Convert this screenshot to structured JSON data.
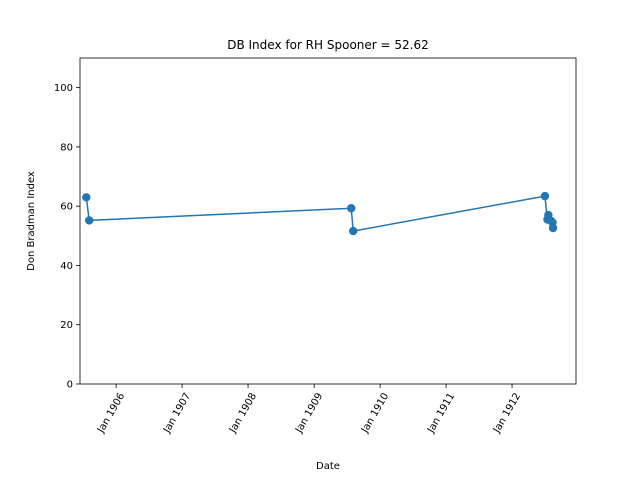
{
  "chart_data": {
    "type": "line",
    "title": "DB Index for RH Spooner = 52.62",
    "xlabel": "Date",
    "ylabel": "Don Bradman Index",
    "ylim": [
      0,
      110
    ],
    "xlim": [
      "1905-06-15",
      "1912-12-20"
    ],
    "x_ticks": [
      {
        "date": "1906-01-01",
        "label": "Jan 1906"
      },
      {
        "date": "1907-01-01",
        "label": "Jan 1907"
      },
      {
        "date": "1908-01-01",
        "label": "Jan 1908"
      },
      {
        "date": "1909-01-01",
        "label": "Jan 1909"
      },
      {
        "date": "1910-01-01",
        "label": "Jan 1910"
      },
      {
        "date": "1911-01-01",
        "label": "Jan 1911"
      },
      {
        "date": "1912-01-01",
        "label": "Jan 1912"
      }
    ],
    "y_ticks": [
      0,
      20,
      40,
      60,
      80,
      100
    ],
    "grid": false,
    "color": "#1f77b4",
    "series": [
      {
        "x": [
          "1905-07-20",
          "1905-08-05",
          "1909-07-25",
          "1909-08-05",
          "1912-07-01",
          "1912-07-15",
          "1912-07-20",
          "1912-08-05",
          "1912-08-12",
          "1912-08-15"
        ],
        "y": [
          63.0,
          55.2,
          59.3,
          51.6,
          63.4,
          55.5,
          57.0,
          55.0,
          54.5,
          52.62
        ]
      }
    ]
  }
}
